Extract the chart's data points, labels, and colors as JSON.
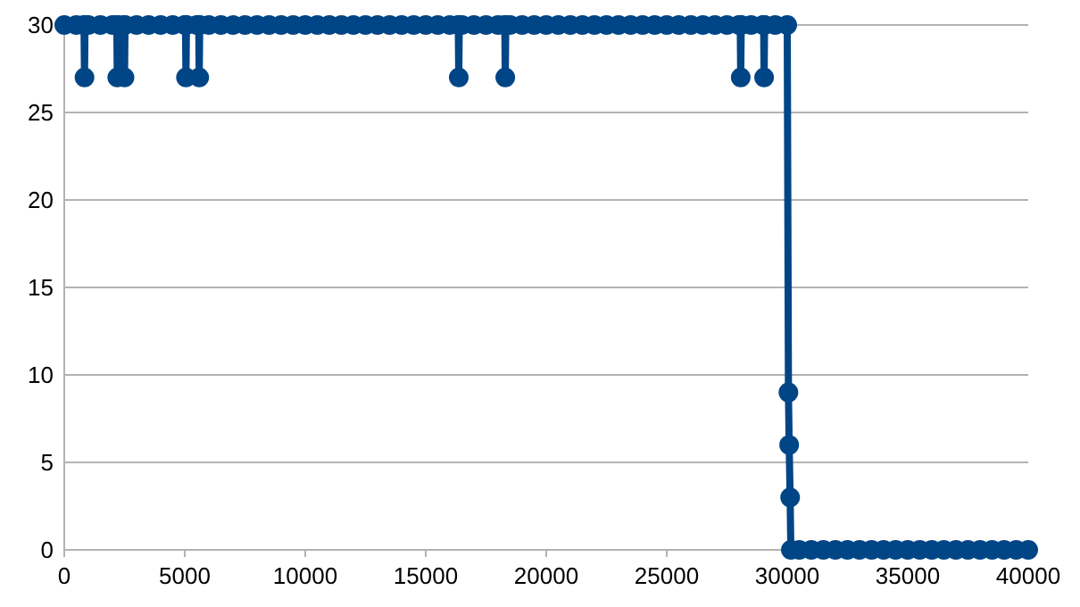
{
  "chart_data": {
    "type": "line",
    "xlim": [
      0,
      40000
    ],
    "ylim": [
      0,
      30
    ],
    "xticks": [
      0,
      5000,
      10000,
      15000,
      20000,
      25000,
      30000,
      35000,
      40000
    ],
    "yticks": [
      0,
      5,
      10,
      15,
      20,
      25,
      30
    ],
    "grid": "y",
    "marker": "circle",
    "line_style": "solid",
    "series": [
      {
        "color": "#004586",
        "x": [
          0,
          500,
          820,
          840,
          860,
          1000,
          1500,
          2000,
          2180,
          2200,
          2220,
          2480,
          2500,
          2520,
          3000,
          3500,
          4000,
          4500,
          5000,
          5030,
          5050,
          5070,
          5500,
          5580,
          5600,
          5620,
          6000,
          6500,
          7000,
          7500,
          8000,
          8500,
          9000,
          9500,
          10000,
          10500,
          11000,
          11500,
          12000,
          12500,
          13000,
          13500,
          14000,
          14500,
          15000,
          15500,
          16000,
          16350,
          16370,
          16390,
          16500,
          17000,
          17500,
          18000,
          18280,
          18300,
          18320,
          18500,
          19000,
          19500,
          20000,
          20500,
          21000,
          21500,
          22000,
          22500,
          23000,
          23500,
          24000,
          24500,
          25000,
          25500,
          26000,
          26500,
          27000,
          27500,
          28000,
          28050,
          28070,
          28090,
          28500,
          29000,
          29020,
          29040,
          29060,
          29500,
          30000,
          30050,
          30080,
          30120,
          30150,
          30500,
          31000,
          31500,
          32000,
          32500,
          33000,
          33500,
          34000,
          34500,
          35000,
          35500,
          36000,
          36500,
          37000,
          37500,
          38000,
          38500,
          39000,
          39500,
          40000
        ],
        "values": [
          30,
          30,
          30,
          27,
          30,
          30,
          30,
          30,
          30,
          27,
          30,
          30,
          27,
          30,
          30,
          30,
          30,
          30,
          30,
          30,
          27,
          30,
          30,
          30,
          27,
          30,
          30,
          30,
          30,
          30,
          30,
          30,
          30,
          30,
          30,
          30,
          30,
          30,
          30,
          30,
          30,
          30,
          30,
          30,
          30,
          30,
          30,
          30,
          27,
          30,
          30,
          30,
          30,
          30,
          30,
          27,
          30,
          30,
          30,
          30,
          30,
          30,
          30,
          30,
          30,
          30,
          30,
          30,
          30,
          30,
          30,
          30,
          30,
          30,
          30,
          30,
          30,
          30,
          27,
          30,
          30,
          30,
          30,
          27,
          30,
          30,
          30,
          9,
          6,
          3,
          0,
          0,
          0,
          0,
          0,
          0,
          0,
          0,
          0,
          0,
          0,
          0,
          0,
          0,
          0,
          0,
          0,
          0,
          0,
          0,
          0
        ]
      }
    ]
  }
}
